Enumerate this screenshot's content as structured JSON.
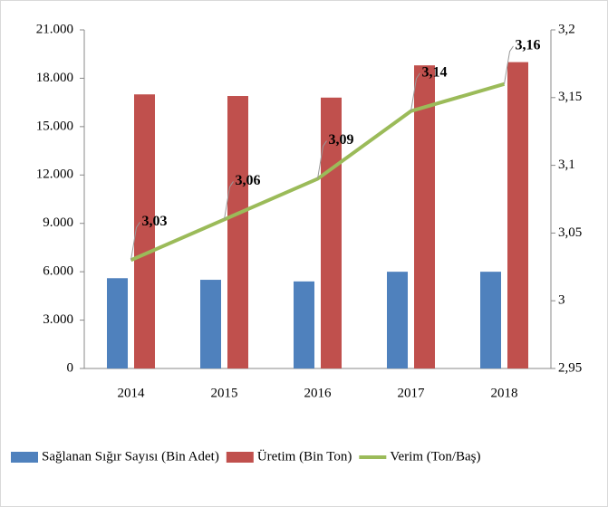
{
  "chart_data": {
    "type": "bar_line",
    "categories": [
      "2014",
      "2015",
      "2016",
      "2017",
      "2018"
    ],
    "series": [
      {
        "name": "Sağlanan Sığır Sayısı (Bin Adet)",
        "color": "#4f81bd",
        "type": "bar",
        "values": [
          5600,
          5500,
          5400,
          6000,
          6000
        ]
      },
      {
        "name": "Üretim (Bin Ton)",
        "color": "#c0504d",
        "type": "bar",
        "values": [
          17000,
          16900,
          16800,
          18800,
          19000
        ]
      },
      {
        "name": "Verim (Ton/Baş)",
        "color": "#9bbb59",
        "type": "line",
        "axis": "y2",
        "values": [
          3.03,
          3.06,
          3.09,
          3.14,
          3.16
        ],
        "value_labels": [
          "3,03",
          "3,06",
          "3,09",
          "3,14",
          "3,16"
        ]
      }
    ],
    "ylim": [
      0,
      21000
    ],
    "yticks": [
      0,
      {
        "value": 3000,
        "label": "3.000"
      },
      {
        "value": 6000,
        "label": "6.000"
      },
      {
        "value": 9000,
        "label": "9.000"
      },
      {
        "value": 12000,
        "label": "12.000"
      },
      {
        "value": 15000,
        "label": "15.000"
      },
      {
        "value": 18000,
        "label": "18.000"
      },
      {
        "value": 21000,
        "label": "21.000"
      }
    ],
    "y2lim": [
      2.95,
      3.2
    ],
    "y2ticks": [
      {
        "value": 2.95,
        "label": "2,95"
      },
      3,
      {
        "value": 3.05,
        "label": "3,05"
      },
      {
        "value": 3.1,
        "label": "3,1"
      },
      {
        "value": 3.15,
        "label": "3,15"
      },
      {
        "value": 3.2,
        "label": "3,2"
      }
    ],
    "legend": "bottom"
  }
}
